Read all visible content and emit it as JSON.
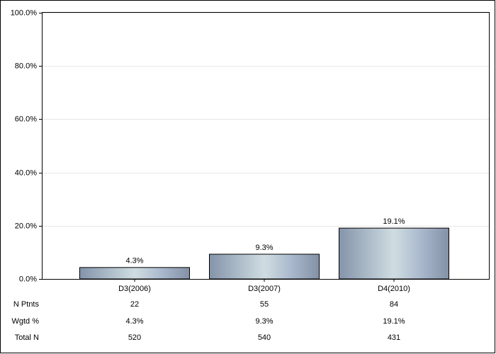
{
  "chart_data": {
    "type": "bar",
    "categories": [
      "D3(2006)",
      "D3(2007)",
      "D4(2010)"
    ],
    "values": [
      4.3,
      9.3,
      19.1
    ],
    "value_labels": [
      "4.3%",
      "9.3%",
      "19.1%"
    ],
    "ylim": [
      0,
      100
    ],
    "yticks": [
      {
        "value": 0,
        "label": "0.0%"
      },
      {
        "value": 20,
        "label": "20.0%"
      },
      {
        "value": 40,
        "label": "40.0%"
      },
      {
        "value": 60,
        "label": "60.0%"
      },
      {
        "value": 80,
        "label": "80.0%"
      },
      {
        "value": 100,
        "label": "100.0%"
      }
    ],
    "grid": true,
    "table": {
      "rows": [
        {
          "label": "N Ptnts",
          "values": [
            22,
            55,
            84
          ]
        },
        {
          "label": "Wgtd %",
          "values": [
            "4.3%",
            "9.3%",
            "19.1%"
          ]
        },
        {
          "label": "Total N",
          "values": [
            520,
            540,
            431
          ]
        }
      ]
    }
  }
}
